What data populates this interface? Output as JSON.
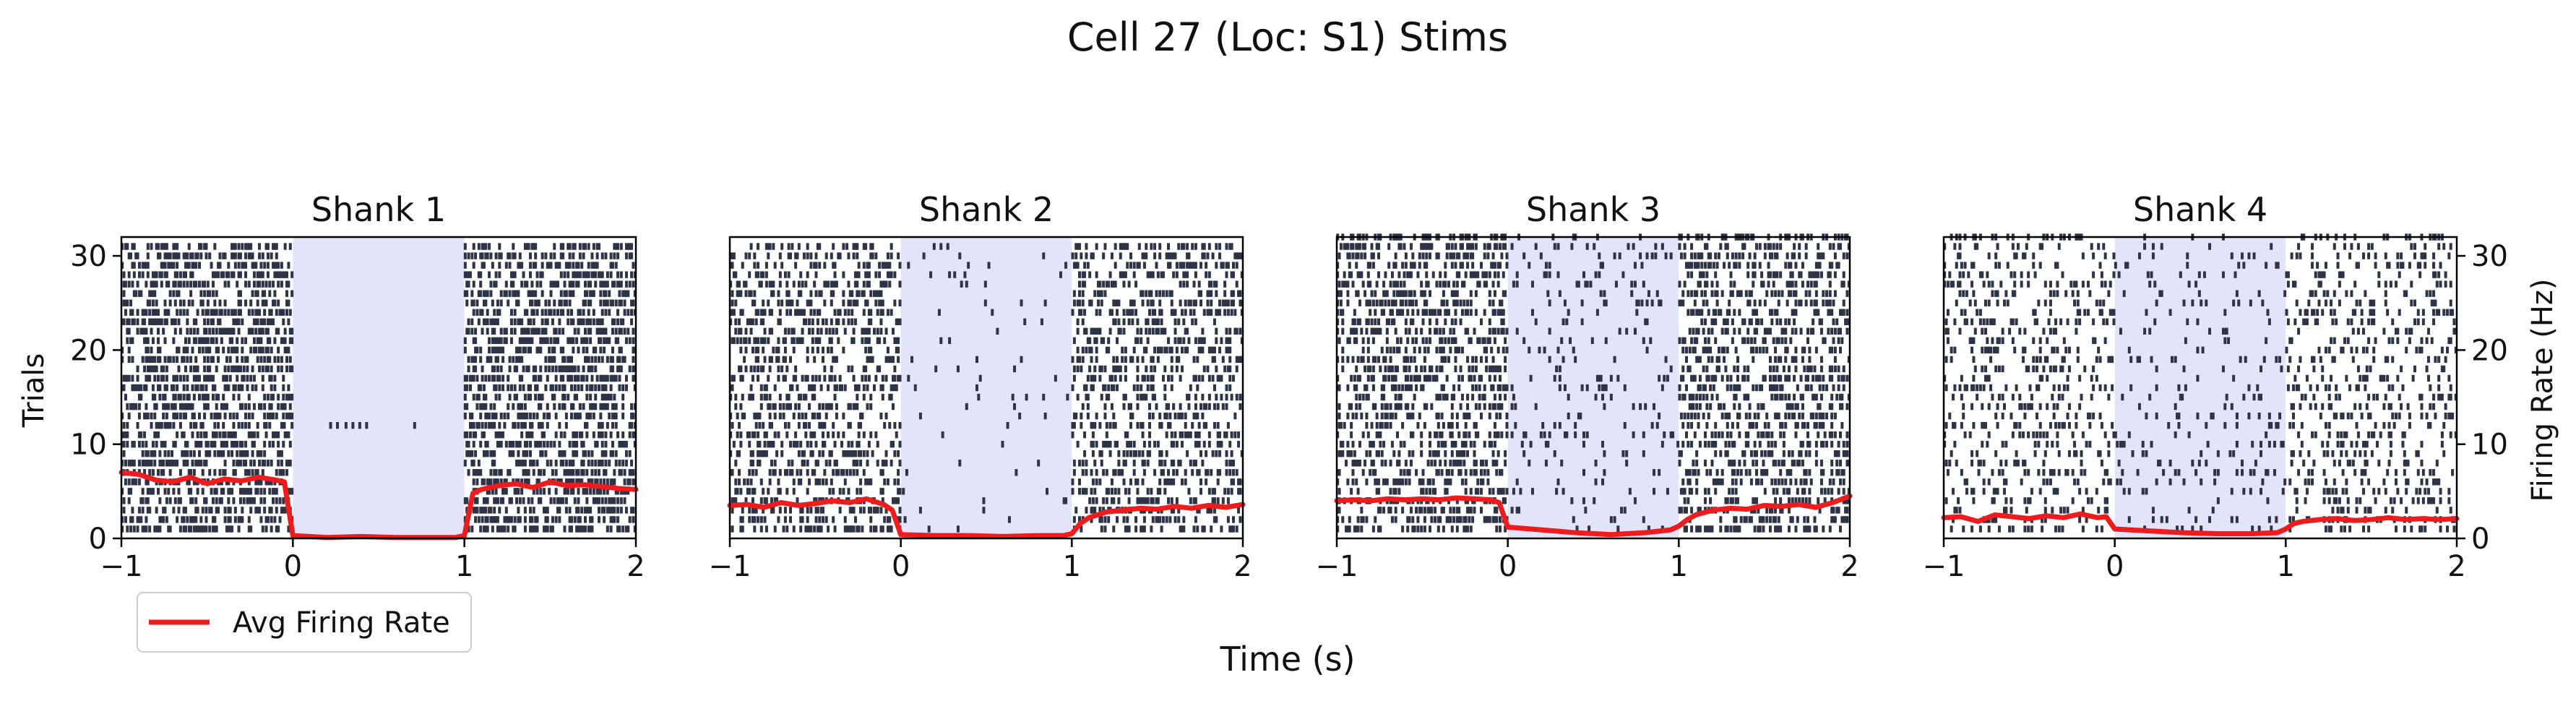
{
  "figure": {
    "title": "Cell 27 (Loc: S1) Stims",
    "xlabel": "Time (s)",
    "ylabel_left": "Trials",
    "ylabel_right": "Firing Rate (Hz)",
    "legend_label": "Avg Firing Rate"
  },
  "colors": {
    "spike": "#2e3346",
    "rate": "#ee1c1c",
    "stim_shade": "#e3e3f9",
    "axis": "#000000"
  },
  "chart_data": [
    {
      "type": "raster",
      "title": "Shank 1",
      "xlim": [
        -1,
        2
      ],
      "ylim": [
        0,
        32
      ],
      "xticks": [
        -1,
        0,
        1,
        2
      ],
      "yticks": [
        0,
        10,
        20,
        30
      ],
      "n_trials": 31,
      "stim_window": [
        0,
        1
      ],
      "spike_density": {
        "pre": 0.42,
        "stim": 0.0,
        "post": 0.42
      },
      "stim_burst_trial": 12,
      "stim_burst_times": [
        -0.05,
        0.22,
        0.26,
        0.31,
        0.35,
        0.39,
        0.43,
        0.71
      ],
      "rate_x": [
        -1,
        -0.9,
        -0.8,
        -0.7,
        -0.6,
        -0.5,
        -0.4,
        -0.3,
        -0.2,
        -0.1,
        -0.05,
        0,
        0.2,
        0.4,
        0.6,
        0.8,
        0.95,
        1,
        1.05,
        1.1,
        1.2,
        1.3,
        1.4,
        1.5,
        1.6,
        1.7,
        1.8,
        1.9,
        2
      ],
      "rate_y": [
        7,
        6.8,
        6.2,
        6.0,
        6.5,
        5.8,
        6.3,
        6.1,
        6.5,
        6.2,
        6.0,
        0.3,
        0.1,
        0.2,
        0.1,
        0.1,
        0.1,
        0.3,
        4.8,
        5.2,
        5.6,
        5.8,
        5.4,
        6.0,
        5.6,
        5.7,
        5.5,
        5.3,
        5.2
      ]
    },
    {
      "type": "raster",
      "title": "Shank 2",
      "xlim": [
        -1,
        2
      ],
      "ylim": [
        0,
        32
      ],
      "xticks": [
        -1,
        0,
        1,
        2
      ],
      "yticks": [
        0,
        10,
        20,
        30
      ],
      "n_trials": 31,
      "stim_window": [
        0,
        1
      ],
      "spike_density": {
        "pre": 0.3,
        "stim": 0.02,
        "post": 0.3
      },
      "rate_x": [
        -1,
        -0.9,
        -0.8,
        -0.7,
        -0.6,
        -0.5,
        -0.4,
        -0.3,
        -0.2,
        -0.1,
        -0.05,
        0,
        0.2,
        0.4,
        0.6,
        0.8,
        0.95,
        1,
        1.05,
        1.1,
        1.2,
        1.3,
        1.4,
        1.5,
        1.6,
        1.7,
        1.8,
        1.9,
        2
      ],
      "rate_y": [
        3.5,
        3.6,
        3.3,
        3.8,
        3.5,
        3.7,
        4.0,
        3.8,
        4.2,
        3.6,
        3.0,
        0.4,
        0.3,
        0.3,
        0.2,
        0.3,
        0.3,
        0.5,
        1.6,
        2.2,
        2.8,
        3.0,
        3.2,
        3.1,
        3.4,
        3.2,
        3.5,
        3.3,
        3.6
      ]
    },
    {
      "type": "raster",
      "title": "Shank 3",
      "xlim": [
        -1,
        2
      ],
      "ylim": [
        0,
        32
      ],
      "xticks": [
        -1,
        0,
        1,
        2
      ],
      "yticks": [
        0,
        10,
        20,
        30
      ],
      "n_trials": 32,
      "stim_window": [
        0,
        1
      ],
      "spike_density": {
        "pre": 0.34,
        "stim": 0.07,
        "post": 0.34
      },
      "rate_x": [
        -1,
        -0.9,
        -0.8,
        -0.7,
        -0.6,
        -0.5,
        -0.4,
        -0.3,
        -0.2,
        -0.1,
        -0.05,
        0,
        0.2,
        0.4,
        0.6,
        0.8,
        0.95,
        1,
        1.05,
        1.1,
        1.2,
        1.3,
        1.4,
        1.5,
        1.6,
        1.7,
        1.8,
        1.9,
        2
      ],
      "rate_y": [
        4.0,
        4.1,
        4.0,
        4.2,
        4.1,
        4.2,
        4.1,
        4.3,
        4.2,
        4.1,
        3.8,
        1.2,
        0.9,
        0.6,
        0.4,
        0.6,
        0.9,
        1.3,
        2.0,
        2.5,
        3.0,
        3.2,
        3.1,
        3.5,
        3.4,
        3.6,
        3.3,
        3.8,
        4.5
      ]
    },
    {
      "type": "raster",
      "title": "Shank 4",
      "xlim": [
        -1,
        2
      ],
      "ylim": [
        0,
        32
      ],
      "xticks": [
        -1,
        0,
        1,
        2
      ],
      "yticks": [
        0,
        10,
        20,
        30
      ],
      "y2ticks": [
        0,
        10,
        20,
        30
      ],
      "n_trials": 32,
      "stim_window": [
        0,
        1
      ],
      "spike_density": {
        "pre": 0.18,
        "stim": 0.07,
        "post": 0.18
      },
      "rate_x": [
        -1,
        -0.9,
        -0.8,
        -0.7,
        -0.6,
        -0.5,
        -0.4,
        -0.3,
        -0.2,
        -0.1,
        -0.05,
        0,
        0.2,
        0.4,
        0.6,
        0.8,
        0.95,
        1,
        1.05,
        1.1,
        1.2,
        1.3,
        1.4,
        1.5,
        1.6,
        1.7,
        1.8,
        1.9,
        2
      ],
      "rate_y": [
        2.2,
        2.3,
        1.8,
        2.5,
        2.3,
        2.1,
        2.4,
        2.2,
        2.6,
        2.2,
        2.3,
        1.0,
        0.8,
        0.6,
        0.5,
        0.5,
        0.6,
        1.0,
        1.6,
        1.8,
        2.0,
        2.1,
        1.9,
        2.0,
        2.2,
        2.0,
        2.1,
        2.0,
        2.1
      ]
    }
  ]
}
